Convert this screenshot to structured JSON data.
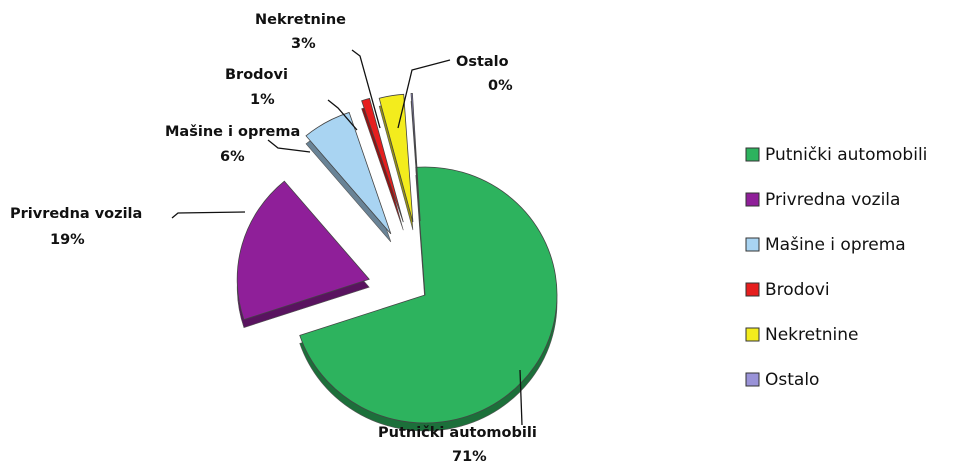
{
  "chart_data": {
    "type": "pie",
    "title": "",
    "legend_position": "right",
    "slices": [
      {
        "label": "Putnički automobili",
        "value": 71,
        "value_label": "71%",
        "color": "#2db35e"
      },
      {
        "label": "Privredna vozila",
        "value": 19,
        "value_label": "19%",
        "color": "#8f1f99"
      },
      {
        "label": "Mašine i oprema",
        "value": 6,
        "value_label": "6%",
        "color": "#a9d4f2"
      },
      {
        "label": "Brodovi",
        "value": 1,
        "value_label": "1%",
        "color": "#e61e1e"
      },
      {
        "label": "Nekretnine",
        "value": 3,
        "value_label": "3%",
        "color": "#f3ec1d"
      },
      {
        "label": "Ostalo",
        "value": 0,
        "value_label": "0%",
        "color": "#9a93d8"
      }
    ]
  }
}
